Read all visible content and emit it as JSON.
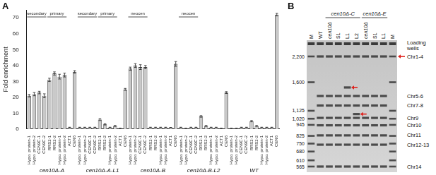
{
  "chart_data": {
    "panel": "A",
    "type": "bar",
    "y_label": "Fold enrichment",
    "categories": [
      "Hypo. protein-1",
      "Hypo. protein-2",
      "CEN9C-1",
      "CEN9C-2",
      "RRS2-1",
      "RRS2-2",
      "Hypo. protein-1",
      "Hypo. protein-2",
      "ACT1",
      "CEN6",
      "Hypo. protein-1",
      "Hypo. protein-2",
      "CEN9C-1",
      "CEN9C-2",
      "RRS2-1",
      "RRS2-2",
      "Hypo. protein-1",
      "Hypo. protein-2",
      "ACT1",
      "CEN6",
      "Hypo. protein-1",
      "Hypo. protein-2",
      "CEN9C-1",
      "CEN9C-2",
      "RRS2-1",
      "RRS2-2",
      "Hypo. protein-1",
      "Hypo. protein-2",
      "ACT1",
      "CEN6",
      "Hypo. protein-1",
      "Hypo. protein-2",
      "CEN9C-1",
      "CEN9C-2",
      "RRS2-1",
      "RRS2-2",
      "Hypo. protein-1",
      "Hypo. protein-2",
      "ACT1",
      "CEN6",
      "Hypo. protein-1",
      "Hypo. protein-2",
      "CEN9C-1",
      "CEN9C-2",
      "RRS2-1",
      "RRS2-2",
      "Hypo. protein-1",
      "Hypo. protein-2",
      "ACT1",
      "CEN6"
    ],
    "values": [
      21,
      22,
      23,
      21,
      31,
      35,
      33,
      34,
      1,
      36,
      1,
      1,
      1,
      1,
      6,
      3,
      1,
      2,
      0.5,
      25,
      38,
      40,
      39,
      39,
      1,
      1,
      1,
      1,
      1,
      41,
      1,
      0.5,
      1,
      1,
      8,
      2,
      1,
      1,
      0.5,
      23,
      0.5,
      0.5,
      1,
      1,
      5,
      2,
      1,
      1,
      1,
      72
    ],
    "errors": [
      0.8,
      1,
      0.8,
      1.2,
      1,
      1,
      1.5,
      1.2,
      0.2,
      0.8,
      0.2,
      0.2,
      0.2,
      0.2,
      0.6,
      0.4,
      0.2,
      0.3,
      0.1,
      0.6,
      1,
      1.2,
      1.5,
      1,
      0.2,
      0.2,
      0.2,
      0.2,
      0.1,
      1.5,
      0.2,
      0.1,
      0.2,
      0.2,
      0.5,
      0.3,
      0.2,
      0.2,
      0.1,
      0.6,
      0.1,
      0.1,
      0.2,
      0.2,
      0.4,
      0.3,
      0.2,
      0.2,
      0.2,
      0.8
    ],
    "groups": [
      {
        "label": "cen10Δ-A",
        "from": 0,
        "to": 9
      },
      {
        "label": "cen10Δ-A-L1",
        "from": 10,
        "to": 19
      },
      {
        "label": "cen10Δ-B",
        "from": 20,
        "to": 29
      },
      {
        "label": "cen10Δ-B-L2",
        "from": 30,
        "to": 39
      },
      {
        "label": "WT",
        "from": 40,
        "to": 49
      }
    ],
    "brackets": [
      {
        "label": "secondary",
        "from": 0,
        "to": 3
      },
      {
        "label": "primary",
        "from": 4,
        "to": 7
      },
      {
        "label": "secondary",
        "from": 10,
        "to": 13
      },
      {
        "label": "primary",
        "from": 14,
        "to": 17
      },
      {
        "label": "neocen",
        "from": 20,
        "to": 23
      },
      {
        "label": "neocen",
        "from": 30,
        "to": 33
      }
    ],
    "color": "#c9c9c9",
    "ylim": [
      0,
      75
    ],
    "yticks": [
      0,
      10,
      20,
      30,
      40,
      50,
      60,
      70
    ],
    "grid": false
  },
  "gel": {
    "panel": "B",
    "lanes": [
      "M",
      "WT",
      "cen10Δ",
      "S1",
      "L1",
      "L2",
      "cen10Δ",
      "S1",
      "L1",
      "M"
    ],
    "groups": [
      {
        "label": "cen10Δ-C",
        "from": 2,
        "to": 5
      },
      {
        "label": "cen10Δ-E",
        "from": 6,
        "to": 8
      }
    ],
    "size_labels": [
      {
        "value": 2200,
        "label": "2,200"
      },
      {
        "value": 1600,
        "label": "1,600"
      },
      {
        "value": 1125,
        "label": "1,125"
      },
      {
        "value": 1020,
        "label": "1,020"
      },
      945,
      825,
      750,
      680,
      610,
      565
    ],
    "wells_label": "Loading wells",
    "chromosomes": [
      {
        "label": "Chr1-4",
        "size": 2200
      },
      {
        "label": "Chr5-6",
        "size": 1350
      },
      {
        "label": "Chr7-8",
        "size": 1200
      },
      {
        "label": "Chr9",
        "size": 1030
      },
      {
        "label": "Chr10",
        "size": 940
      },
      {
        "label": "Chr11",
        "size": 830
      },
      {
        "label": "Chr12-13",
        "size": 740
      },
      {
        "label": "Chr14",
        "size": 565
      }
    ],
    "extra_bands": [
      {
        "lane": 4,
        "size": 1500
      },
      {
        "lane": 5,
        "size": 1080
      }
    ],
    "marked_chromosome": "Chr1-4"
  }
}
